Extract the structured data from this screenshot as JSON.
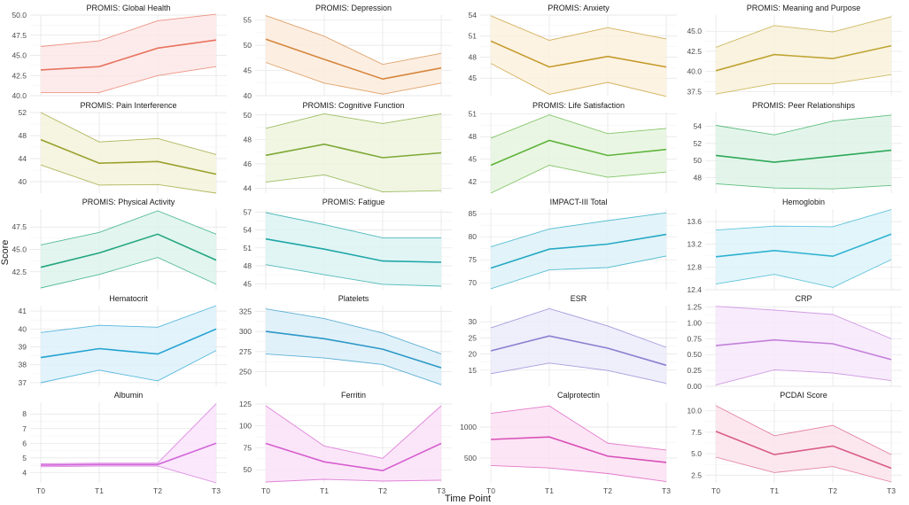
{
  "figure": {
    "xlabel": "Time Point",
    "ylabel": "Score"
  },
  "chart_data": [
    {
      "type": "line",
      "title": "PROMIS: Global Health",
      "categories": [
        "T0",
        "T1",
        "T2",
        "T3"
      ],
      "mean": [
        43.2,
        43.6,
        45.9,
        46.9
      ],
      "lower": [
        40.4,
        40.4,
        42.5,
        43.6
      ],
      "upper": [
        46.1,
        46.8,
        49.3,
        50.1
      ],
      "ylim": [
        40,
        50
      ],
      "yticks": [
        "40.0",
        "42.5",
        "45.0",
        "47.5",
        "50.0"
      ],
      "color": "#E8735F",
      "fill": "#FDE8E8"
    },
    {
      "type": "line",
      "title": "PROMIS: Depression",
      "categories": [
        "T0",
        "T1",
        "T2",
        "T3"
      ],
      "mean": [
        51.2,
        47.2,
        43.3,
        45.5
      ],
      "lower": [
        46.6,
        42.5,
        40.3,
        42.5
      ],
      "upper": [
        55.9,
        51.8,
        46.2,
        48.4
      ],
      "ylim": [
        40,
        56
      ],
      "yticks": [
        "40",
        "45",
        "50",
        "55"
      ],
      "color": "#D4873D",
      "fill": "#FDEBDD"
    },
    {
      "type": "line",
      "title": "PROMIS: Anxiety",
      "categories": [
        "T0",
        "T1",
        "T2",
        "T3"
      ],
      "mean": [
        50.3,
        46.6,
        48.1,
        46.6
      ],
      "lower": [
        47.1,
        42.7,
        44.4,
        42.4
      ],
      "upper": [
        53.9,
        50.4,
        52.2,
        50.6
      ],
      "ylim": [
        42.5,
        54
      ],
      "yticks": [
        "45",
        "48",
        "51",
        "54"
      ],
      "color": "#C59A2B",
      "fill": "#FCF1DD"
    },
    {
      "type": "line",
      "title": "PROMIS: Meaning and Purpose",
      "categories": [
        "T0",
        "T1",
        "T2",
        "T3"
      ],
      "mean": [
        40.1,
        42.1,
        41.6,
        43.2
      ],
      "lower": [
        37.2,
        38.5,
        38.5,
        39.6
      ],
      "upper": [
        43.0,
        45.7,
        44.9,
        46.8
      ],
      "ylim": [
        37,
        47
      ],
      "yticks": [
        "37.5",
        "40.0",
        "42.5",
        "45.0"
      ],
      "color": "#BFA432",
      "fill": "#F8F1DA"
    },
    {
      "type": "line",
      "title": "PROMIS: Pain Interference",
      "categories": [
        "T0",
        "T1",
        "T2",
        "T3"
      ],
      "mean": [
        47.3,
        43.2,
        43.5,
        41.3
      ],
      "lower": [
        42.9,
        39.4,
        39.5,
        38.0
      ],
      "upper": [
        52.0,
        46.9,
        47.5,
        44.7
      ],
      "ylim": [
        38,
        52
      ],
      "yticks": [
        "40",
        "44",
        "48",
        "52"
      ],
      "color": "#9AA02C",
      "fill": "#F3F3DC"
    },
    {
      "type": "line",
      "title": "PROMIS: Cognitive Function",
      "categories": [
        "T0",
        "T1",
        "T2",
        "T3"
      ],
      "mean": [
        46.7,
        47.6,
        46.5,
        46.9
      ],
      "lower": [
        44.5,
        45.1,
        43.7,
        43.8
      ],
      "upper": [
        48.9,
        50.1,
        49.3,
        50.1
      ],
      "ylim": [
        43.6,
        50.2
      ],
      "yticks": [
        "44",
        "46",
        "48",
        "50"
      ],
      "color": "#7FA836",
      "fill": "#EEF4DE"
    },
    {
      "type": "line",
      "title": "PROMIS: Life Satisfaction",
      "categories": [
        "T0",
        "T1",
        "T2",
        "T3"
      ],
      "mean": [
        44.2,
        47.5,
        45.5,
        46.3
      ],
      "lower": [
        40.5,
        44.2,
        42.6,
        43.3
      ],
      "upper": [
        47.8,
        50.9,
        48.4,
        49.1
      ],
      "ylim": [
        40.5,
        51.2
      ],
      "yticks": [
        "42",
        "45",
        "48",
        "51"
      ],
      "color": "#5FB43B",
      "fill": "#E6F5DF"
    },
    {
      "type": "line",
      "title": "PROMIS: Peer Relationships",
      "categories": [
        "T0",
        "T1",
        "T2",
        "T3"
      ],
      "mean": [
        50.6,
        49.8,
        50.5,
        51.2
      ],
      "lower": [
        47.3,
        46.8,
        46.7,
        47.1
      ],
      "upper": [
        54.1,
        53.0,
        54.6,
        55.3
      ],
      "ylim": [
        46.2,
        55.6
      ],
      "yticks": [
        "48",
        "50",
        "52",
        "54"
      ],
      "color": "#2FA85A",
      "fill": "#DEF3E6"
    },
    {
      "type": "line",
      "title": "PROMIS: Physical Activity",
      "categories": [
        "T0",
        "T1",
        "T2",
        "T3"
      ],
      "mean": [
        43.0,
        44.6,
        46.7,
        43.8
      ],
      "lower": [
        40.7,
        42.2,
        44.1,
        41.1
      ],
      "upper": [
        45.5,
        46.9,
        49.3,
        46.7
      ],
      "ylim": [
        40.5,
        49.5
      ],
      "yticks": [
        "42.5",
        "45.0",
        "47.5"
      ],
      "color": "#22A67E",
      "fill": "#DDF3EC"
    },
    {
      "type": "line",
      "title": "PROMIS: Fatigue",
      "categories": [
        "T0",
        "T1",
        "T2",
        "T3"
      ],
      "mean": [
        52.5,
        50.8,
        48.8,
        48.6
      ],
      "lower": [
        48.2,
        46.5,
        44.9,
        44.6
      ],
      "upper": [
        56.9,
        54.9,
        52.7,
        52.7
      ],
      "ylim": [
        44,
        57.5
      ],
      "yticks": [
        "45",
        "48",
        "51",
        "54",
        "57"
      ],
      "color": "#20A6A6",
      "fill": "#DCF3F3"
    },
    {
      "type": "line",
      "title": "IMPACT-III Total",
      "categories": [
        "T0",
        "T1",
        "T2",
        "T3"
      ],
      "mean": [
        73.2,
        77.3,
        78.4,
        80.5
      ],
      "lower": [
        68.7,
        72.8,
        73.3,
        75.8
      ],
      "upper": [
        77.8,
        81.7,
        83.5,
        85.2
      ],
      "ylim": [
        68.5,
        86
      ],
      "yticks": [
        "70",
        "75",
        "80",
        "85"
      ],
      "color": "#26A9C4",
      "fill": "#DDF2F8"
    },
    {
      "type": "line",
      "title": "Hemoglobin",
      "categories": [
        "T0",
        "T1",
        "T2",
        "T3"
      ],
      "mean": [
        12.98,
        13.09,
        12.99,
        13.38
      ],
      "lower": [
        12.5,
        12.67,
        12.44,
        12.93
      ],
      "upper": [
        13.45,
        13.52,
        13.51,
        13.81
      ],
      "ylim": [
        12.4,
        13.82
      ],
      "yticks": [
        "12.4",
        "12.8",
        "13.2",
        "13.6"
      ],
      "color": "#2FB2D0",
      "fill": "#DDF3FA"
    },
    {
      "type": "line",
      "title": "Hematocrit",
      "categories": [
        "T0",
        "T1",
        "T2",
        "T3"
      ],
      "mean": [
        38.4,
        38.9,
        38.6,
        40.0
      ],
      "lower": [
        37.0,
        37.7,
        37.1,
        38.8
      ],
      "upper": [
        39.8,
        40.2,
        40.1,
        41.3
      ],
      "ylim": [
        36.8,
        41.3
      ],
      "yticks": [
        "37",
        "38",
        "39",
        "40",
        "41"
      ],
      "color": "#23A2D1",
      "fill": "#DDF1FA"
    },
    {
      "type": "line",
      "title": "Platelets",
      "categories": [
        "T0",
        "T1",
        "T2",
        "T3"
      ],
      "mean": [
        300,
        291,
        278,
        255
      ],
      "lower": [
        272,
        267,
        259,
        234
      ],
      "upper": [
        328,
        316,
        298,
        272
      ],
      "ylim": [
        232,
        332
      ],
      "yticks": [
        "250",
        "275",
        "300",
        "325"
      ],
      "color": "#2C98C8",
      "fill": "#DCEEF8"
    },
    {
      "type": "line",
      "title": "ESR",
      "categories": [
        "T0",
        "T1",
        "T2",
        "T3"
      ],
      "mean": [
        21.0,
        25.6,
        21.8,
        16.5
      ],
      "lower": [
        13.9,
        17.2,
        14.9,
        10.9
      ],
      "upper": [
        28.1,
        34.1,
        28.7,
        22.1
      ],
      "ylim": [
        10,
        35
      ],
      "yticks": [
        "15",
        "20",
        "25",
        "30"
      ],
      "color": "#8A7FD0",
      "fill": "#ECEBFA"
    },
    {
      "type": "line",
      "title": "CRP",
      "categories": [
        "T0",
        "T1",
        "T2",
        "T3"
      ],
      "mean": [
        0.64,
        0.73,
        0.67,
        0.42
      ],
      "lower": [
        0.02,
        0.26,
        0.21,
        0.09
      ],
      "upper": [
        1.26,
        1.2,
        1.13,
        0.75
      ],
      "ylim": [
        0,
        1.27
      ],
      "yticks": [
        "0.00",
        "0.25",
        "0.50",
        "0.75",
        "1.00",
        "1.25"
      ],
      "color": "#C47FD9",
      "fill": "#F6E8FB"
    },
    {
      "type": "line",
      "title": "Albumin",
      "categories": [
        "T0",
        "T1",
        "T2",
        "T3"
      ],
      "mean": [
        4.5,
        4.55,
        4.55,
        6.0
      ],
      "lower": [
        4.4,
        4.45,
        4.45,
        3.3
      ],
      "upper": [
        4.6,
        4.65,
        4.65,
        8.7
      ],
      "ylim": [
        3.3,
        8.8
      ],
      "yticks": [
        "4",
        "5",
        "6",
        "7",
        "8"
      ],
      "color": "#D167D9",
      "fill": "#FAE4FB"
    },
    {
      "type": "line",
      "title": "Ferritin",
      "categories": [
        "T0",
        "T1",
        "T2",
        "T3"
      ],
      "mean": [
        80,
        59,
        49,
        80
      ],
      "lower": [
        36,
        39,
        37,
        38
      ],
      "upper": [
        123,
        77,
        63,
        123
      ],
      "ylim": [
        35,
        127
      ],
      "yticks": [
        "50",
        "75",
        "100",
        "125"
      ],
      "color": "#D65ECE",
      "fill": "#FAE2F8"
    },
    {
      "type": "line",
      "title": "Calprotectin",
      "categories": [
        "T0",
        "T1",
        "T2",
        "T3"
      ],
      "mean": [
        800,
        840,
        530,
        430
      ],
      "lower": [
        380,
        340,
        250,
        120
      ],
      "upper": [
        1220,
        1340,
        740,
        630
      ],
      "ylim": [
        100,
        1400
      ],
      "yticks": [
        "500",
        "1000"
      ],
      "color": "#D94FB8",
      "fill": "#FBE0F3"
    },
    {
      "type": "line",
      "title": "PCDAI Score",
      "categories": [
        "T0",
        "T1",
        "T2",
        "T3"
      ],
      "mean": [
        7.6,
        4.9,
        5.9,
        3.3
      ],
      "lower": [
        4.6,
        2.8,
        3.5,
        1.7
      ],
      "upper": [
        10.6,
        7.1,
        8.3,
        4.9
      ],
      "ylim": [
        1.6,
        11
      ],
      "yticks": [
        "2.5",
        "5.0",
        "7.5",
        "10.0"
      ],
      "color": "#D95C86",
      "fill": "#FBE3EC"
    }
  ]
}
